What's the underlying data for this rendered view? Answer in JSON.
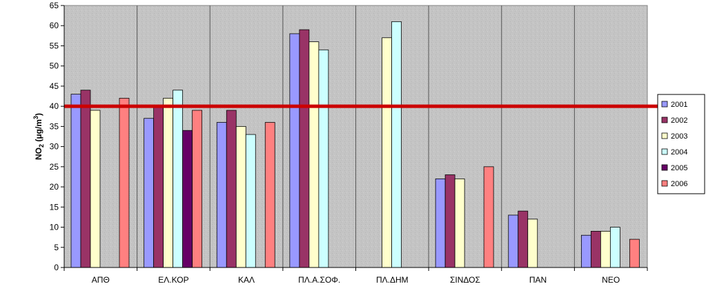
{
  "chart_data": {
    "type": "bar",
    "title": "",
    "xlabel": "",
    "ylabel": "NO",
    "ylabel_sub": "2",
    "ylabel_unit": " (μg/m",
    "ylabel_sup": "3",
    "ylabel_close": ")",
    "ylim": [
      0,
      65
    ],
    "yticks": [
      "0",
      "5",
      "10",
      "15",
      "20",
      "25",
      "30",
      "35",
      "40",
      "45",
      "50",
      "55",
      "60",
      "65"
    ],
    "grid": false,
    "legend_position": "right",
    "limit_line": {
      "value": 40,
      "color": "#cc0000"
    },
    "plot_background": "#c0c0c0",
    "categories": [
      "ΑΠΘ",
      "ΕΛ.ΚΟΡ",
      "ΚΑΛ",
      "ΠΛ.Α.ΣΟΦ.",
      "ΠΛ.ΔΗΜ",
      "ΣΙΝΔΟΣ",
      "ΠΑΝ",
      "ΝΕΟ"
    ],
    "series": [
      {
        "name": "2001",
        "color": "#9999ff",
        "values": [
          43,
          37,
          36,
          58,
          null,
          22,
          13,
          8
        ]
      },
      {
        "name": "2002",
        "color": "#993366",
        "values": [
          44,
          40,
          39,
          59,
          null,
          23,
          14,
          9
        ]
      },
      {
        "name": "2003",
        "color": "#ffffcc",
        "values": [
          39,
          42,
          35,
          56,
          57,
          22,
          12,
          9
        ]
      },
      {
        "name": "2004",
        "color": "#ccffff",
        "values": [
          null,
          44,
          33,
          54,
          61,
          null,
          null,
          10
        ]
      },
      {
        "name": "2005",
        "color": "#660066",
        "values": [
          null,
          34,
          null,
          null,
          null,
          null,
          null,
          null
        ]
      },
      {
        "name": "2006",
        "color": "#ff8080",
        "values": [
          42,
          39,
          36,
          null,
          null,
          25,
          null,
          7
        ]
      }
    ]
  }
}
